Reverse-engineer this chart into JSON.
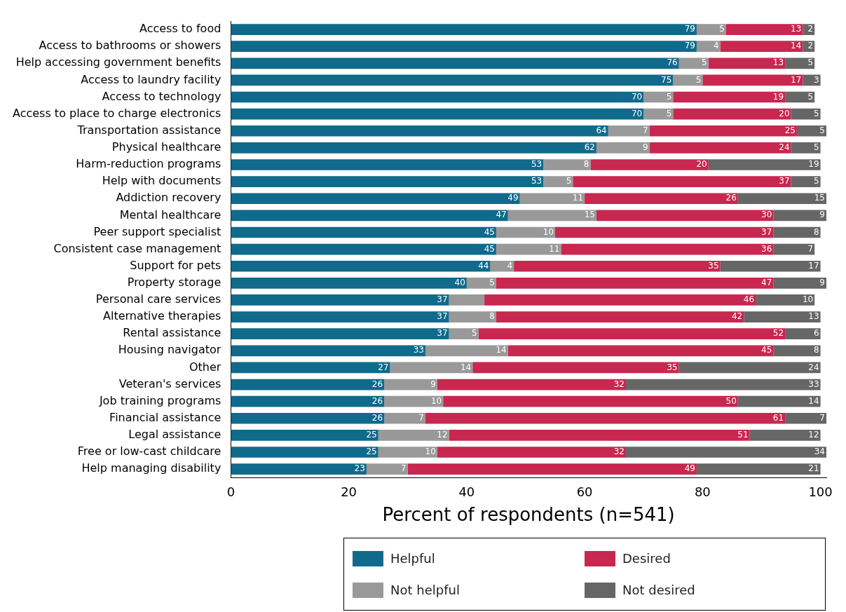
{
  "chart_data": {
    "type": "bar",
    "orientation": "horizontal",
    "stacked": true,
    "xlabel": "Percent of respondents (n=541)",
    "categories": [
      "Access to food",
      "Access to bathrooms or showers",
      "Help accessing government benefits",
      "Access to laundry facility",
      "Access to technology",
      "Access to place to charge electronics",
      "Transportation assistance",
      "Physical healthcare",
      "Harm-reduction programs",
      "Help with documents",
      "Addiction recovery",
      "Mental healthcare",
      "Peer support specialist",
      "Consistent case management",
      "Support for pets",
      "Property storage",
      "Personal care services",
      "Alternative therapies",
      "Rental assistance",
      "Housing navigator",
      "Other",
      "Veteran's services",
      "Job training programs",
      "Financial assistance",
      "Legal assistance",
      "Free or low-cast childcare",
      "Help managing disability"
    ],
    "series": [
      {
        "name": "Helpful",
        "color": "#0f6a8b",
        "values": [
          79,
          79,
          76,
          75,
          70,
          70,
          64,
          62,
          53,
          53,
          49,
          47,
          45,
          45,
          44,
          40,
          37,
          37,
          37,
          33,
          27,
          26,
          26,
          26,
          25,
          25,
          23
        ],
        "value_labels": [
          "79",
          "79",
          "76",
          "75",
          "70",
          "70",
          "64",
          "62",
          "53",
          "53",
          "49",
          "47",
          "45",
          "45",
          "44",
          "40",
          "37",
          "37",
          "37",
          "33",
          "27",
          "26",
          "26",
          "26",
          "25",
          "25",
          "23"
        ]
      },
      {
        "name": "Not helpful",
        "color": "#999999",
        "values": [
          5,
          4,
          5,
          5,
          5,
          5,
          7,
          9,
          8,
          5,
          11,
          15,
          10,
          11,
          4,
          5,
          6,
          8,
          5,
          14,
          14,
          9,
          10,
          7,
          12,
          10,
          7
        ],
        "value_labels": [
          "5",
          "4",
          "5",
          "5",
          "5",
          "5",
          "7",
          "9",
          "8",
          "5",
          "11",
          "15",
          "10",
          "11",
          "4",
          "5",
          null,
          "8",
          "5",
          "14",
          "14",
          "9",
          "10",
          "7",
          "12",
          "10",
          "7"
        ]
      },
      {
        "name": "Desired",
        "color": "#c8274f",
        "values": [
          13,
          14,
          13,
          17,
          19,
          20,
          25,
          24,
          20,
          37,
          26,
          30,
          37,
          36,
          35,
          47,
          46,
          42,
          52,
          45,
          35,
          32,
          50,
          61,
          51,
          32,
          49
        ],
        "value_labels": [
          "13",
          "14",
          "13",
          "17",
          "19",
          "20",
          "25",
          "24",
          "20",
          "37",
          "26",
          "30",
          "37",
          "36",
          "35",
          "47",
          "46",
          "42",
          "52",
          "45",
          "35",
          "32",
          "50",
          "61",
          "51",
          "32",
          "49"
        ]
      },
      {
        "name": "Not desired",
        "color": "#666666",
        "values": [
          2,
          2,
          5,
          3,
          5,
          5,
          5,
          5,
          19,
          5,
          15,
          9,
          8,
          7,
          17,
          9,
          10,
          13,
          6,
          8,
          24,
          33,
          14,
          7,
          12,
          34,
          21
        ],
        "value_labels": [
          "2",
          "2",
          "5",
          "3",
          "5",
          "5",
          "5",
          "5",
          "19",
          "5",
          "15",
          "9",
          "8",
          "7",
          "17",
          "9",
          "10",
          "13",
          "6",
          "8",
          "24",
          "33",
          "14",
          "7",
          "12",
          "34",
          "21"
        ]
      }
    ],
    "xlim": [
      0,
      101
    ],
    "xticks": [
      0,
      20,
      40,
      60,
      80,
      100
    ],
    "grid": false,
    "legend": "bottom"
  }
}
